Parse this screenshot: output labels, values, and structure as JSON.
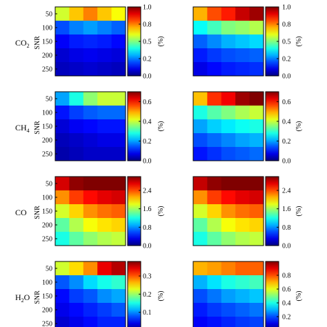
{
  "chart_data": [
    {
      "type": "heatmap",
      "row_label": "CO2",
      "column": "left",
      "ylabel": "SNR",
      "yticks": [
        "50",
        "100",
        "150",
        "200",
        "250"
      ],
      "colorbar": {
        "min": 0.0,
        "max": 1.0,
        "ticks": [
          "0.0",
          "0.2",
          "0.5",
          "0.8",
          "1.0"
        ],
        "tick_values": [
          0,
          0.25,
          0.5,
          0.75,
          1.0
        ],
        "label": "(%)"
      },
      "values": [
        [
          0.58,
          0.68,
          0.75,
          0.68,
          0.62
        ],
        [
          0.2,
          0.25,
          0.28,
          0.25,
          0.22
        ],
        [
          0.12,
          0.15,
          0.16,
          0.15,
          0.13
        ],
        [
          0.08,
          0.1,
          0.11,
          0.1,
          0.09
        ],
        [
          0.06,
          0.07,
          0.08,
          0.07,
          0.06
        ]
      ]
    },
    {
      "type": "heatmap",
      "row_label": "CO2",
      "column": "right",
      "ylabel": "",
      "yticks": [],
      "colorbar": {
        "min": 0.0,
        "max": 1.0,
        "ticks": [
          "0.0",
          "0.2",
          "0.5",
          "0.8",
          "1.0"
        ],
        "tick_values": [
          0,
          0.25,
          0.5,
          0.75,
          1.0
        ],
        "label": "(%)"
      },
      "values": [
        [
          0.7,
          0.8,
          0.85,
          0.93,
          0.97
        ],
        [
          0.38,
          0.44,
          0.5,
          0.52,
          0.55
        ],
        [
          0.22,
          0.26,
          0.3,
          0.32,
          0.34
        ],
        [
          0.15,
          0.18,
          0.2,
          0.21,
          0.22
        ],
        [
          0.1,
          0.13,
          0.15,
          0.16,
          0.17
        ]
      ]
    },
    {
      "type": "heatmap",
      "row_label": "CH4",
      "column": "left",
      "ylabel": "SNR",
      "yticks": [
        "50",
        "100",
        "150",
        "200",
        "250"
      ],
      "colorbar": {
        "min": 0.0,
        "max": 0.7,
        "ticks": [
          "0.0",
          "0.2",
          "0.4",
          "0.6"
        ],
        "tick_values": [
          0,
          0.2,
          0.4,
          0.6
        ],
        "label": "(%)"
      },
      "values": [
        [
          0.2,
          0.28,
          0.36,
          0.4,
          0.4
        ],
        [
          0.1,
          0.13,
          0.15,
          0.16,
          0.16
        ],
        [
          0.06,
          0.08,
          0.09,
          0.1,
          0.1
        ],
        [
          0.04,
          0.05,
          0.06,
          0.07,
          0.07
        ],
        [
          0.03,
          0.04,
          0.05,
          0.05,
          0.05
        ]
      ]
    },
    {
      "type": "heatmap",
      "row_label": "CH4",
      "column": "right",
      "ylabel": "",
      "yticks": [],
      "colorbar": {
        "min": 0.0,
        "max": 0.7,
        "ticks": [
          "0.0",
          "0.2",
          "0.4",
          "0.6"
        ],
        "tick_values": [
          0,
          0.2,
          0.4,
          0.6
        ],
        "label": "(%)"
      },
      "values": [
        [
          0.48,
          0.58,
          0.62,
          0.68,
          0.7
        ],
        [
          0.28,
          0.32,
          0.35,
          0.38,
          0.4
        ],
        [
          0.2,
          0.23,
          0.25,
          0.27,
          0.28
        ],
        [
          0.14,
          0.16,
          0.18,
          0.2,
          0.21
        ],
        [
          0.1,
          0.12,
          0.14,
          0.15,
          0.16
        ]
      ]
    },
    {
      "type": "heatmap",
      "row_label": "CO",
      "column": "left",
      "ylabel": "SNR",
      "yticks": [
        "50",
        "100",
        "150",
        "200",
        "250"
      ],
      "colorbar": {
        "min": 0.0,
        "max": 3.0,
        "ticks": [
          "0.0",
          "0.8",
          "1.6",
          "2.4"
        ],
        "tick_values": [
          0,
          0.8,
          1.6,
          2.4
        ],
        "label": "(%)"
      },
      "values": [
        [
          2.75,
          2.95,
          3.0,
          3.0,
          3.0
        ],
        [
          2.2,
          2.45,
          2.6,
          2.7,
          2.75
        ],
        [
          1.75,
          2.0,
          2.2,
          2.3,
          2.35
        ],
        [
          1.4,
          1.65,
          1.85,
          1.95,
          2.0
        ],
        [
          1.2,
          1.4,
          1.55,
          1.65,
          1.7
        ]
      ]
    },
    {
      "type": "heatmap",
      "row_label": "CO",
      "column": "right",
      "ylabel": "",
      "yticks": [],
      "colorbar": {
        "min": 0.0,
        "max": 3.0,
        "ticks": [
          "0.0",
          "0.8",
          "1.6",
          "2.4"
        ],
        "tick_values": [
          0,
          0.8,
          1.6,
          2.4
        ],
        "label": "(%)"
      },
      "values": [
        [
          2.8,
          2.95,
          3.0,
          3.0,
          3.0
        ],
        [
          2.2,
          2.45,
          2.6,
          2.7,
          2.75
        ],
        [
          1.75,
          2.0,
          2.2,
          2.3,
          2.35
        ],
        [
          1.4,
          1.65,
          1.85,
          1.95,
          2.0
        ],
        [
          1.2,
          1.4,
          1.55,
          1.65,
          1.7
        ]
      ]
    },
    {
      "type": "heatmap",
      "row_label": "H2O",
      "column": "left",
      "ylabel": "SNR",
      "yticks": [
        "50",
        "100",
        "150",
        "200",
        "250"
      ],
      "colorbar": {
        "min": 0.0,
        "max": 0.38,
        "ticks": [
          "0.1",
          "0.2",
          "0.3"
        ],
        "tick_values": [
          0.1,
          0.2,
          0.3
        ],
        "label": "(%)"
      },
      "values": [
        [
          0.22,
          0.25,
          0.28,
          0.34,
          0.36
        ],
        [
          0.08,
          0.1,
          0.13,
          0.15,
          0.16
        ],
        [
          0.05,
          0.07,
          0.08,
          0.1,
          0.11
        ],
        [
          0.04,
          0.05,
          0.06,
          0.07,
          0.08
        ],
        [
          0.03,
          0.04,
          0.05,
          0.06,
          0.06
        ]
      ]
    },
    {
      "type": "heatmap",
      "row_label": "H2O",
      "column": "right",
      "ylabel": "",
      "yticks": [],
      "colorbar": {
        "min": 0.0,
        "max": 1.0,
        "ticks": [
          "0.2",
          "0.4",
          "0.6",
          "0.8"
        ],
        "tick_values": [
          0.2,
          0.4,
          0.6,
          0.8
        ],
        "label": "(%)"
      },
      "values": [
        [
          0.7,
          0.72,
          0.75,
          0.78,
          0.78
        ],
        [
          0.3,
          0.35,
          0.4,
          0.42,
          0.44
        ],
        [
          0.2,
          0.24,
          0.28,
          0.3,
          0.32
        ],
        [
          0.15,
          0.18,
          0.2,
          0.22,
          0.24
        ],
        [
          0.12,
          0.14,
          0.16,
          0.18,
          0.19
        ]
      ]
    }
  ],
  "row_labels": [
    {
      "main": "CO",
      "sub": "2"
    },
    {
      "main": "CH",
      "sub": "4"
    },
    {
      "main": "CO",
      "sub": ""
    },
    {
      "main": "H",
      "sub": "2",
      "tail": "O"
    }
  ],
  "colormap": "jet"
}
